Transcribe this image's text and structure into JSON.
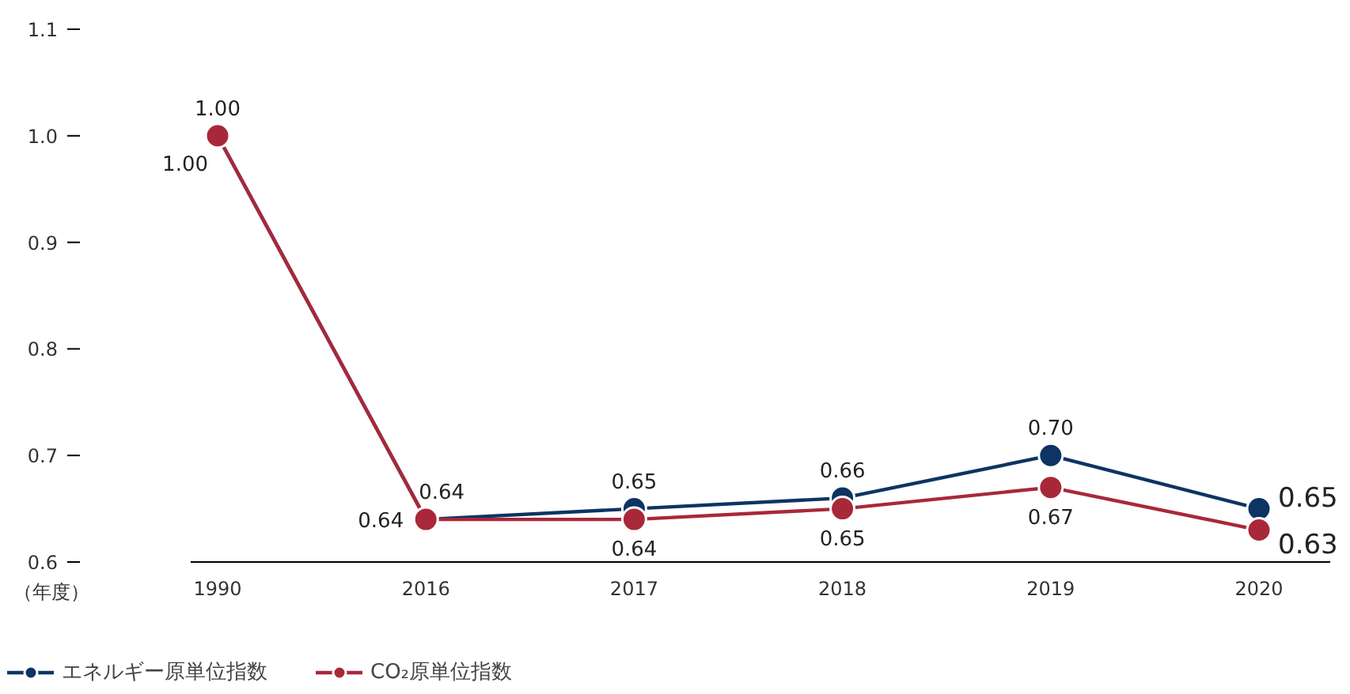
{
  "chart_data": {
    "type": "line",
    "xlabel": "（年度）",
    "categories": [
      "1990",
      "2016",
      "2017",
      "2018",
      "2019",
      "2020"
    ],
    "series": [
      {
        "name": "エネルギー原単位指数",
        "color": "#0d3462",
        "values": [
          1.0,
          0.64,
          0.65,
          0.66,
          0.7,
          0.65
        ],
        "value_labels": [
          "1.00",
          "0.64",
          "0.65",
          "0.66",
          "0.70",
          "0.65"
        ]
      },
      {
        "name": "CO₂原単位指数",
        "color": "#a8283a",
        "values": [
          1.0,
          0.64,
          0.64,
          0.65,
          0.67,
          0.63
        ],
        "value_labels": [
          "1.00",
          "0.64",
          "0.64",
          "0.65",
          "0.67",
          "0.63"
        ]
      }
    ],
    "ylim": [
      0.6,
      1.1
    ],
    "yticks": [
      0.6,
      0.7,
      0.8,
      0.9,
      {
        "value": 1.0,
        "label": "1.0"
      },
      1.1
    ],
    "legend": "bottom left",
    "marker": "circle",
    "line_style": "solid"
  }
}
